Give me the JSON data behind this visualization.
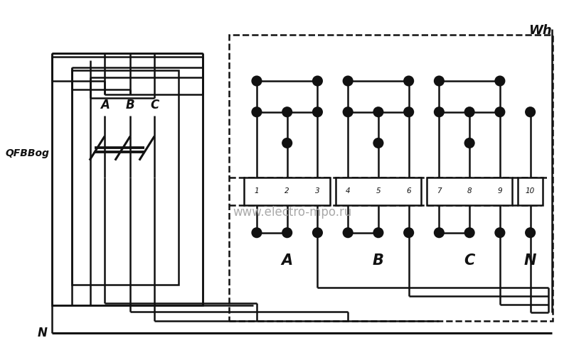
{
  "bg_color": "#ffffff",
  "line_color": "#111111",
  "lw": 1.8,
  "lw_thick": 2.2,
  "cr": 6.5,
  "watermark": "www.electro-mpo.ru",
  "wh_label": "Wh",
  "qf_label": "QFBBog",
  "N_label": "N",
  "phase_labels_qf": [
    "A",
    "B",
    "C"
  ],
  "phase_labels_meter": [
    "A",
    "B",
    "C",
    "N"
  ],
  "terminal_numbers": [
    "1",
    "2",
    "3",
    "4",
    "5",
    "6",
    "7",
    "8",
    "9",
    "10"
  ],
  "figw": 8.0,
  "figh": 5.0,
  "dpi": 100,
  "xlim": [
    0,
    800
  ],
  "ylim": [
    0,
    500
  ]
}
